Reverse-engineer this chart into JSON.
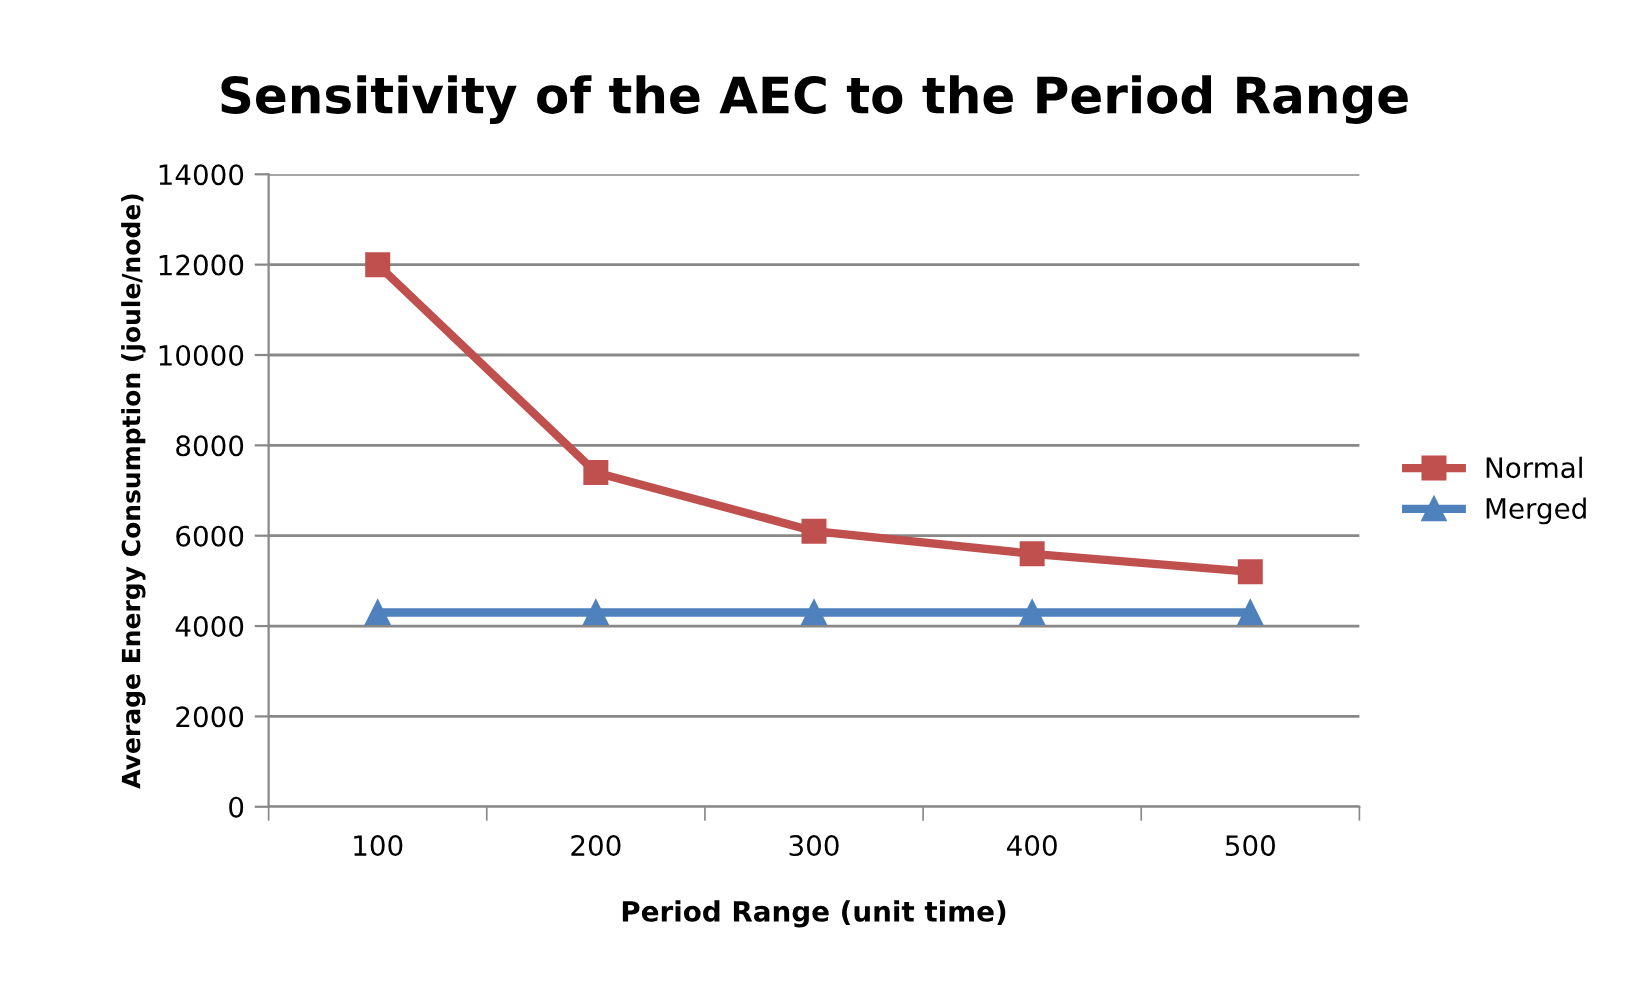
{
  "chart_data": {
    "type": "line",
    "title": "Sensitivity of the AEC to the Period Range",
    "xlabel": "Period Range (unit time)",
    "ylabel": "Average Energy Consumption (joule/node)",
    "categories": [
      "100",
      "200",
      "300",
      "400",
      "500"
    ],
    "series": [
      {
        "name": "Normal",
        "color": "#c0504d",
        "marker": "square",
        "values": [
          12000,
          7400,
          6100,
          5600,
          5200
        ]
      },
      {
        "name": "Merged",
        "color": "#4f81bd",
        "marker": "triangle",
        "values": [
          4300,
          4300,
          4300,
          4300,
          4300
        ]
      }
    ],
    "ylim": [
      0,
      14000
    ],
    "yticks": [
      0,
      2000,
      4000,
      6000,
      8000,
      10000,
      12000,
      14000
    ],
    "grid": "y",
    "legend": "right",
    "line_style": "solid"
  }
}
